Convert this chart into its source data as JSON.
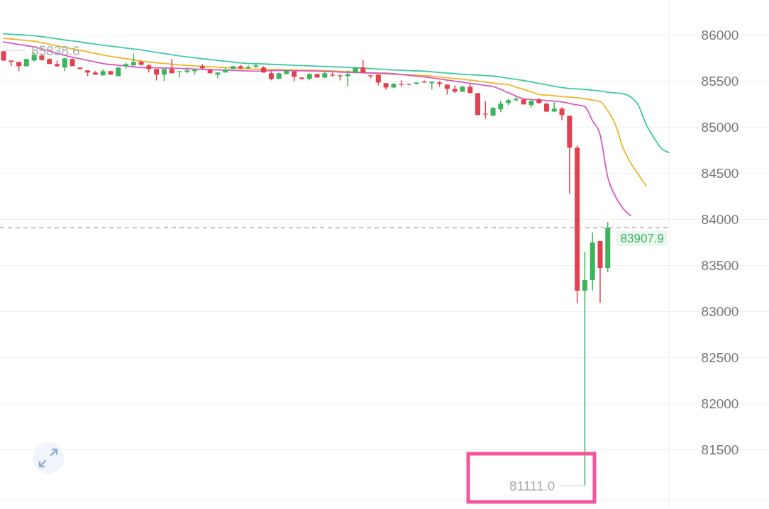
{
  "chart_data": {
    "type": "candlestick",
    "tick_labels": "y",
    "grid": "y",
    "colors": [
      "#e0414f",
      "#e0414f",
      "#e0414f",
      "#3bb55d",
      "#3bb55d",
      "#e0414f",
      "#e0414f",
      "#e0414f",
      "#3bb55d",
      "#e0414f",
      "#e0414f",
      "#e0414f",
      "#e0414f",
      "#3bb55d",
      "#e0414f",
      "#3bb55d",
      "#3bb55d",
      "#3bb55d",
      "#e0414f",
      "#e0414f",
      "#e0414f",
      "#3bb55d",
      "#e0414f",
      "#3bb55d",
      "#3bb55d",
      "#3bb55d",
      "#e0414f",
      "#e0414f",
      "#3bb55d",
      "#3bb55d",
      "#3bb55d",
      "#e0414f",
      "#3bb55d",
      "#3bb55d",
      "#e0414f",
      "#e0414f",
      "#3bb55d",
      "#3bb55d",
      "#e0414f",
      "#e0414f",
      "#3bb55d",
      "#e0414f",
      "#3bb55d",
      "#e0414f",
      "#e0414f",
      "#3bb55d",
      "#3bb55d",
      "#e0414f",
      "#e0414f",
      "#e0414f",
      "#e0414f",
      "#3bb55d",
      "#e0414f",
      "#e0414f",
      "#3bb55d",
      "#e0414f",
      "#3bb55d",
      "#e0414f",
      "#e0414f",
      "#e0414f",
      "#3bb55d",
      "#e0414f",
      "#e0414f",
      "#e0414f",
      "#3bb55d",
      "#3bb55d",
      "#3bb55d",
      "#3bb55d",
      "#e0414f",
      "#3bb55d",
      "#e0414f",
      "#e0414f",
      "#3bb55d",
      "#e0414f",
      "#e0414f",
      "#e0414f",
      "#3bb55d",
      "#3bb55d",
      "#e0414f",
      "#3bb55d",
      null,
      null,
      null,
      null,
      null,
      null,
      null,
      null
    ],
    "categories": [
      null,
      null,
      null,
      null,
      null,
      null,
      null,
      null,
      null,
      null,
      null,
      null,
      null,
      null,
      null,
      null,
      null,
      null,
      null,
      null,
      null,
      null,
      null,
      null,
      null,
      null,
      null,
      null,
      null,
      null,
      null,
      null,
      null,
      null,
      null,
      null,
      null,
      null,
      null,
      null,
      null,
      null,
      null,
      null,
      null,
      null,
      null,
      null,
      null,
      null,
      null,
      null,
      null,
      null,
      null,
      null,
      null,
      null,
      null,
      null,
      null,
      null,
      null,
      null,
      null,
      null,
      null,
      null,
      null,
      null,
      null,
      null,
      null,
      null,
      null,
      null,
      null,
      null,
      null,
      null,
      null,
      null,
      null,
      null,
      null,
      null,
      null,
      null
    ],
    "ohlc": [
      [
        85823,
        85830,
        85715,
        85723
      ],
      [
        85723,
        85723,
        85662,
        85708
      ],
      [
        85708,
        85708,
        85608,
        85662
      ],
      [
        85662,
        85739,
        85662,
        85739
      ],
      [
        85723,
        85808,
        85715,
        85785
      ],
      [
        85777,
        85793,
        85723,
        85731
      ],
      [
        85739,
        85747,
        85685,
        85685
      ],
      [
        85685,
        85723,
        85654,
        85662
      ],
      [
        85647,
        85754,
        85608,
        85747
      ],
      [
        85739,
        85747,
        85662,
        85662
      ],
      [
        85647,
        85647,
        85624,
        85631
      ],
      [
        85616,
        85616,
        85554,
        85593
      ],
      [
        85593,
        85608,
        85570,
        85570
      ],
      [
        85562,
        85631,
        85562,
        85608
      ],
      [
        85608,
        85608,
        85570,
        85570
      ],
      [
        85554,
        85654,
        85554,
        85647
      ],
      [
        85662,
        85700,
        85631,
        85685
      ],
      [
        85670,
        85800,
        85670,
        85708
      ],
      [
        85708,
        85723,
        85670,
        85677
      ],
      [
        85670,
        85685,
        85593,
        85631
      ],
      [
        85631,
        85631,
        85508,
        85570
      ],
      [
        85570,
        85631,
        85501,
        85631
      ],
      [
        85631,
        85739,
        85585,
        85585
      ],
      [
        85600,
        85608,
        85539,
        85608
      ],
      [
        85600,
        85654,
        85585,
        85616
      ],
      [
        85608,
        85631,
        85570,
        85624
      ],
      [
        85662,
        85685,
        85631,
        85639
      ],
      [
        85624,
        85631,
        85585,
        85585
      ],
      [
        85570,
        85593,
        85531,
        85593
      ],
      [
        85593,
        85647,
        85593,
        85624
      ],
      [
        85631,
        85662,
        85631,
        85662
      ],
      [
        85662,
        85677,
        85631,
        85639
      ],
      [
        85639,
        85670,
        85631,
        85654
      ],
      [
        85654,
        85700,
        85647,
        85670
      ],
      [
        85647,
        85662,
        85593,
        85593
      ],
      [
        85585,
        85608,
        85508,
        85524
      ],
      [
        85524,
        85593,
        85524,
        85585
      ],
      [
        85577,
        85624,
        85570,
        85616
      ],
      [
        85608,
        85608,
        85501,
        85547
      ],
      [
        85539,
        85539,
        85516,
        85524
      ],
      [
        85524,
        85585,
        85508,
        85577
      ],
      [
        85577,
        85577,
        85539,
        85539
      ],
      [
        85539,
        85593,
        85531,
        85585
      ],
      [
        85570,
        85593,
        85547,
        85562
      ],
      [
        85562,
        85570,
        85508,
        85554
      ],
      [
        85554,
        85616,
        85447,
        85577
      ],
      [
        85593,
        85647,
        85593,
        85647
      ],
      [
        85647,
        85731,
        85593,
        85593
      ],
      [
        85562,
        85562,
        85531,
        85554
      ],
      [
        85570,
        85570,
        85454,
        85485
      ],
      [
        85478,
        85478,
        85408,
        85431
      ],
      [
        85431,
        85478,
        85424,
        85470
      ],
      [
        85470,
        85508,
        85439,
        85462
      ],
      [
        85470,
        85470,
        85454,
        85462
      ],
      [
        85470,
        85485,
        85462,
        85485
      ],
      [
        85493,
        85508,
        85485,
        85485
      ],
      [
        85478,
        85493,
        85408,
        85493
      ],
      [
        85485,
        85500,
        85439,
        85470
      ],
      [
        85462,
        85462,
        85354,
        85416
      ],
      [
        85416,
        85454,
        85370,
        85385
      ],
      [
        85385,
        85454,
        85385,
        85439
      ],
      [
        85439,
        85470,
        85370,
        85370
      ],
      [
        85370,
        85370,
        85132,
        85132
      ],
      [
        85147,
        85285,
        85094,
        85140
      ],
      [
        85124,
        85216,
        85124,
        85209
      ],
      [
        85194,
        85285,
        85163,
        85255
      ],
      [
        85262,
        85308,
        85239,
        85293
      ],
      [
        85293,
        85331,
        85278,
        85308
      ],
      [
        85301,
        85308,
        85247,
        85247
      ],
      [
        85239,
        85301,
        85209,
        85285
      ],
      [
        85301,
        85316,
        85255,
        85262
      ],
      [
        85255,
        85262,
        85163,
        85170
      ],
      [
        85170,
        85270,
        85163,
        85201
      ],
      [
        85201,
        85216,
        85078,
        85132
      ],
      [
        85124,
        85124,
        84279,
        84778
      ],
      [
        84778,
        84801,
        83088,
        83226
      ],
      [
        83226,
        83649,
        81111,
        83342
      ],
      [
        83342,
        83857,
        83226,
        83749
      ],
      [
        83765,
        83765,
        83096,
        83472
      ],
      [
        83472,
        83972,
        83426,
        83907.9
      ],
      null,
      null,
      null,
      null,
      null,
      null,
      null,
      null
    ],
    "series": [
      {
        "type": "line",
        "color": "#3ec9a7",
        "values": [
          86013,
          86008,
          86003,
          85998,
          85992,
          85982,
          85971,
          85959,
          85947,
          85936,
          85925,
          85912,
          85901,
          85889,
          85879,
          85869,
          85859,
          85849,
          85839,
          85825,
          85812,
          85800,
          85786,
          85773,
          85763,
          85753,
          85743,
          85734,
          85725,
          85715,
          85707,
          85698,
          85691,
          85689,
          85686,
          85682,
          85679,
          85676,
          85672,
          85669,
          85666,
          85662,
          85659,
          85656,
          85652,
          85649,
          85645,
          85641,
          85635,
          85630,
          85625,
          85621,
          85618,
          85614,
          85611,
          85607,
          85601,
          85594,
          85587,
          85581,
          85574,
          85570,
          85565,
          85560,
          85555,
          85544,
          85531,
          85518,
          85507,
          85490,
          85475,
          85460,
          85445,
          85429,
          85420,
          85415,
          85409,
          85402,
          85393,
          85379,
          85372,
          85362,
          85328,
          85237,
          85032,
          84891,
          84771,
          84725
        ]
      },
      {
        "type": "line",
        "color": "#f0b429",
        "values": [
          85965,
          85957,
          85949,
          85940,
          85932,
          85917,
          85900,
          85883,
          85866,
          85851,
          85834,
          85817,
          85800,
          85783,
          85769,
          85756,
          85743,
          85730,
          85716,
          85707,
          85699,
          85691,
          85683,
          85676,
          85671,
          85665,
          85660,
          85656,
          85651,
          85647,
          85643,
          85639,
          85634,
          85630,
          85629,
          85627,
          85624,
          85622,
          85621,
          85619,
          85617,
          85616,
          85613,
          85610,
          85606,
          85603,
          85599,
          85594,
          85589,
          85584,
          85578,
          85575,
          85572,
          85568,
          85565,
          85561,
          85554,
          85545,
          85537,
          85528,
          85521,
          85511,
          85501,
          85489,
          85479,
          85470,
          85462,
          85435,
          85410,
          85382,
          85355,
          85348,
          85341,
          85333,
          85327,
          85320,
          85309,
          85294,
          85278,
          85179,
          85028,
          84775,
          84612,
          84488,
          84364,
          null,
          null,
          null
        ]
      },
      {
        "type": "line",
        "color": "#d75ac0",
        "values": [
          85925,
          85911,
          85898,
          85884,
          85872,
          85850,
          85826,
          85803,
          85779,
          85759,
          85742,
          85725,
          85708,
          85691,
          85680,
          85672,
          85664,
          85655,
          85647,
          85645,
          85644,
          85642,
          85640,
          85637,
          85634,
          85631,
          85627,
          85624,
          85621,
          85619,
          85616,
          85613,
          85610,
          85608,
          85610,
          85613,
          85615,
          85615,
          85613,
          85612,
          85610,
          85608,
          85605,
          85602,
          85598,
          85595,
          85592,
          85590,
          85589,
          85587,
          85586,
          85580,
          85571,
          85563,
          85554,
          85546,
          85535,
          85523,
          85511,
          85499,
          85488,
          85476,
          85465,
          85453,
          85441,
          85410,
          85374,
          85338,
          85308,
          85301,
          85295,
          85289,
          85283,
          85273,
          85258,
          85242,
          85224,
          85070,
          84917,
          84456,
          84249,
          84118,
          84041,
          null,
          null,
          null,
          null,
          null
        ]
      }
    ],
    "ylim": [
      80950,
      86380
    ],
    "yticks": [
      81500,
      82000,
      82500,
      83000,
      83500,
      84000,
      84500,
      85000,
      85500,
      86000
    ],
    "ref_lines": [
      {
        "axis": "y",
        "value": 83907.9,
        "label": "83907.9",
        "color": "#9a9a9a",
        "line_style": "dashed"
      }
    ],
    "annotations": [
      "85838.6",
      "81111.0"
    ]
  }
}
